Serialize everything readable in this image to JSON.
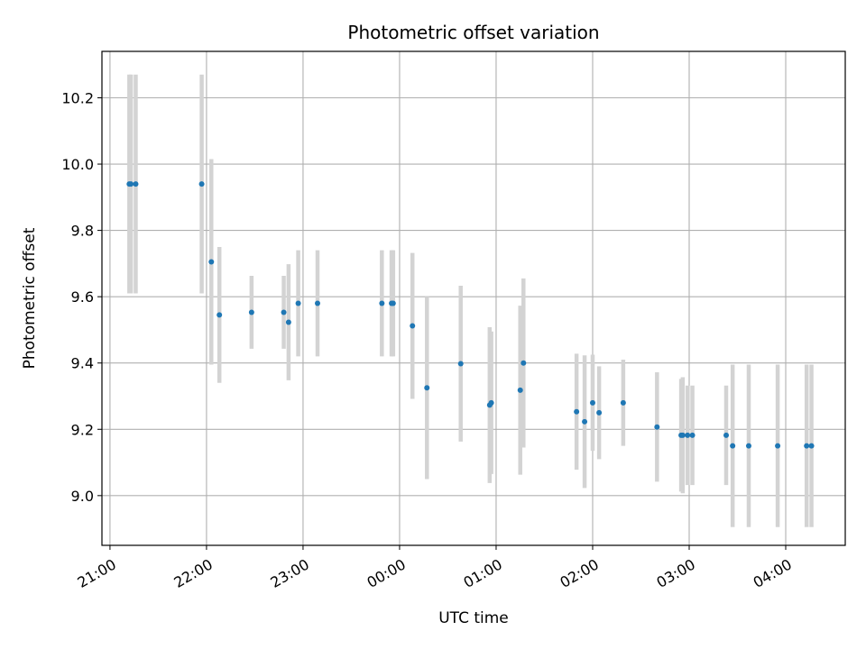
{
  "chart_data": {
    "type": "scatter",
    "title": "Photometric offset variation",
    "xlabel": "UTC time",
    "ylabel": "Photometric offset",
    "x_unit": "UTC clock time (hours, continuing past midnight)",
    "xlim": [
      "20:55",
      "04:37"
    ],
    "ylim": [
      8.85,
      10.34
    ],
    "grid": true,
    "x_ticks": [
      "21:00",
      "22:00",
      "23:00",
      "00:00",
      "01:00",
      "02:00",
      "03:00",
      "04:00"
    ],
    "y_ticks": [
      "9.0",
      "9.2",
      "9.4",
      "9.6",
      "9.8",
      "10.0",
      "10.2"
    ],
    "marker_color": "#1f77b4",
    "errorbar_color": "#d3d3d3",
    "series": [
      {
        "points": [
          {
            "x": "21:12",
            "y": 9.94,
            "yerr": 0.33
          },
          {
            "x": "21:13",
            "y": 9.94,
            "yerr": 0.33
          },
          {
            "x": "21:16",
            "y": 9.94,
            "yerr": 0.33
          },
          {
            "x": "21:57",
            "y": 9.94,
            "yerr": 0.33
          },
          {
            "x": "22:03",
            "y": 9.705,
            "yerr": 0.31
          },
          {
            "x": "22:08",
            "y": 9.545,
            "yerr": 0.205
          },
          {
            "x": "22:28",
            "y": 9.553,
            "yerr": 0.11
          },
          {
            "x": "22:48",
            "y": 9.553,
            "yerr": 0.11
          },
          {
            "x": "22:51",
            "y": 9.523,
            "yerr": 0.175
          },
          {
            "x": "22:57",
            "y": 9.58,
            "yerr": 0.16
          },
          {
            "x": "23:09",
            "y": 9.58,
            "yerr": 0.16
          },
          {
            "x": "23:49",
            "y": 9.58,
            "yerr": 0.16
          },
          {
            "x": "23:55",
            "y": 9.58,
            "yerr": 0.16
          },
          {
            "x": "23:56",
            "y": 9.58,
            "yerr": 0.16
          },
          {
            "x": "00:08",
            "y": 9.512,
            "yerr": 0.22
          },
          {
            "x": "00:17",
            "y": 9.325,
            "yerr": 0.275
          },
          {
            "x": "00:38",
            "y": 9.398,
            "yerr": 0.235
          },
          {
            "x": "00:56",
            "y": 9.273,
            "yerr": 0.235
          },
          {
            "x": "00:57",
            "y": 9.28,
            "yerr": 0.215
          },
          {
            "x": "01:15",
            "y": 9.318,
            "yerr": 0.255
          },
          {
            "x": "01:17",
            "y": 9.4,
            "yerr": 0.255
          },
          {
            "x": "01:50",
            "y": 9.253,
            "yerr": 0.175
          },
          {
            "x": "01:55",
            "y": 9.223,
            "yerr": 0.2
          },
          {
            "x": "02:00",
            "y": 9.28,
            "yerr": 0.145
          },
          {
            "x": "02:04",
            "y": 9.25,
            "yerr": 0.14
          },
          {
            "x": "02:19",
            "y": 9.28,
            "yerr": 0.13
          },
          {
            "x": "02:40",
            "y": 9.207,
            "yerr": 0.165
          },
          {
            "x": "02:55",
            "y": 9.182,
            "yerr": 0.17
          },
          {
            "x": "02:56",
            "y": 9.182,
            "yerr": 0.175
          },
          {
            "x": "02:59",
            "y": 9.182,
            "yerr": 0.15
          },
          {
            "x": "03:02",
            "y": 9.182,
            "yerr": 0.15
          },
          {
            "x": "03:23",
            "y": 9.182,
            "yerr": 0.15
          },
          {
            "x": "03:27",
            "y": 9.15,
            "yerr": 0.245
          },
          {
            "x": "03:37",
            "y": 9.15,
            "yerr": 0.245
          },
          {
            "x": "03:55",
            "y": 9.15,
            "yerr": 0.245
          },
          {
            "x": "04:13",
            "y": 9.15,
            "yerr": 0.245
          },
          {
            "x": "04:16",
            "y": 9.15,
            "yerr": 0.245
          }
        ]
      }
    ]
  }
}
